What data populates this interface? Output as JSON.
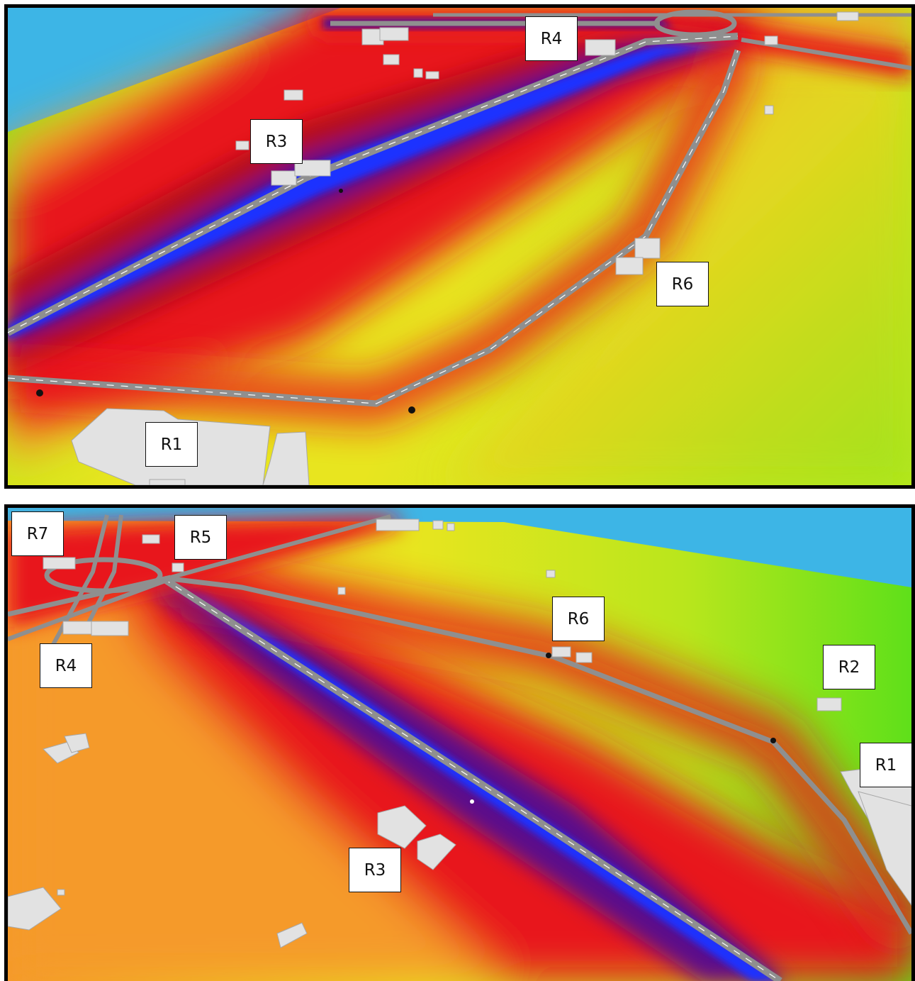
{
  "colors": {
    "sky": "#3db5e6",
    "loud": "#e8141a",
    "very_loud": "#5a0a8c",
    "road_core": "#1e32ff",
    "moderate": "#f59a2a",
    "quiet": "#e8e51f",
    "very_quiet": "#7fe01a",
    "road": "#8f8f8f",
    "building": "#e2e2e2"
  },
  "top_view": {
    "labels": [
      "R4",
      "R3",
      "R6",
      "R1"
    ]
  },
  "bottom_view": {
    "labels": [
      "R7",
      "R5",
      "R6",
      "R4",
      "R2",
      "R1",
      "R3"
    ]
  }
}
